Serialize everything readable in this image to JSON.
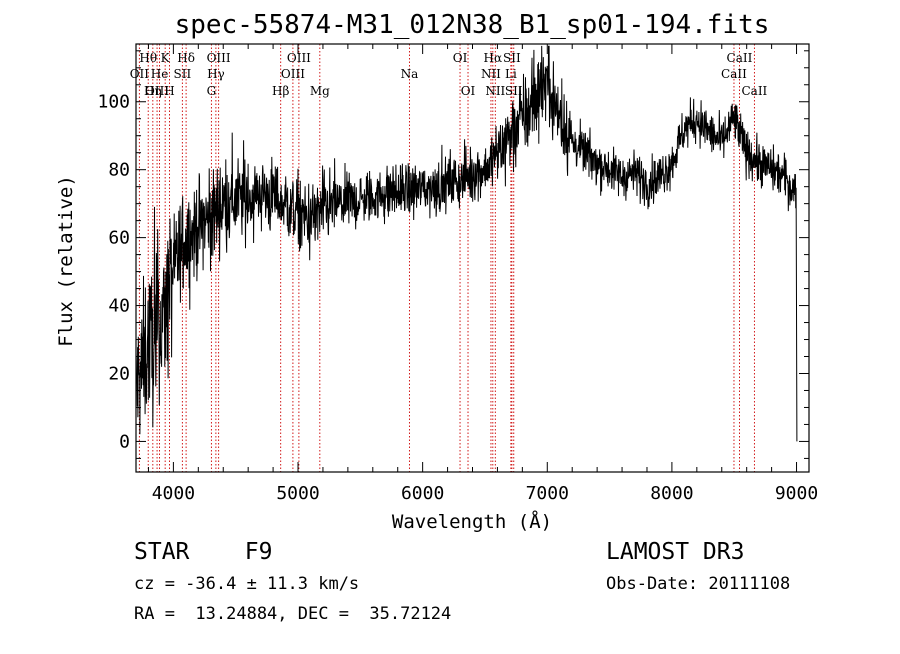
{
  "chart_data": {
    "type": "line",
    "title": "spec-55874-M31_012N38_B1_sp01-194.fits",
    "xlabel": "Wavelength (Å)",
    "ylabel": "Flux (relative)",
    "xlim": [
      3700,
      9100
    ],
    "ylim": [
      -9,
      117
    ],
    "xticks": [
      4000,
      5000,
      6000,
      7000,
      8000,
      9000
    ],
    "yticks": [
      0,
      20,
      40,
      60,
      80,
      100
    ],
    "series": [
      {
        "name": "flux",
        "anchors_x": [
          3700,
          3750,
          3800,
          3850,
          3900,
          3950,
          4000,
          4050,
          4100,
          4200,
          4300,
          4400,
          4500,
          4600,
          4700,
          4800,
          4900,
          5000,
          5100,
          5200,
          5300,
          5500,
          5700,
          5900,
          6100,
          6300,
          6400,
          6500,
          6600,
          6700,
          6800,
          6900,
          6950,
          7000,
          7100,
          7200,
          7300,
          7400,
          7500,
          7600,
          7700,
          7800,
          7900,
          8000,
          8100,
          8200,
          8300,
          8400,
          8500,
          8550,
          8600,
          8700,
          8800,
          8900,
          8950,
          9000
        ],
        "anchors_y": [
          15,
          22,
          30,
          28,
          35,
          40,
          50,
          55,
          60,
          63,
          66,
          70,
          71,
          72,
          73,
          72,
          70,
          67,
          65,
          68,
          70,
          71,
          73,
          74,
          75,
          77,
          79,
          80,
          85,
          90,
          95,
          100,
          105,
          106,
          95,
          88,
          85,
          82,
          80,
          78,
          79,
          76,
          78,
          82,
          92,
          95,
          91,
          88,
          95,
          90,
          85,
          82,
          80,
          78,
          75,
          74
        ]
      }
    ],
    "line_marks": [
      {
        "label": "Hθ",
        "x": 3798,
        "row": 0
      },
      {
        "label": "OII",
        "x": 3727,
        "row": 1
      },
      {
        "label": "OIII",
        "x": 3869,
        "row": 2
      },
      {
        "label": "He",
        "x": 3889,
        "row": 1
      },
      {
        "label": "Hη",
        "x": 3835,
        "row": 2
      },
      {
        "label": "K",
        "x": 3934,
        "row": 0
      },
      {
        "label": "H",
        "x": 3969,
        "row": 2
      },
      {
        "label": "SII",
        "x": 4072,
        "row": 1
      },
      {
        "label": "Hδ",
        "x": 4102,
        "row": 0
      },
      {
        "label": "G",
        "x": 4305,
        "row": 2
      },
      {
        "label": "Hγ",
        "x": 4341,
        "row": 1
      },
      {
        "label": "OIII",
        "x": 4363,
        "row": 0
      },
      {
        "label": "Hβ",
        "x": 4861,
        "row": 2
      },
      {
        "label": "OIII",
        "x": 4959,
        "row": 1
      },
      {
        "label": "OIII",
        "x": 5007,
        "row": 0
      },
      {
        "label": "Mg",
        "x": 5175,
        "row": 2
      },
      {
        "label": "Na",
        "x": 5894,
        "row": 1
      },
      {
        "label": "OI",
        "x": 6300,
        "row": 0
      },
      {
        "label": "OI",
        "x": 6364,
        "row": 2
      },
      {
        "label": "NII",
        "x": 6548,
        "row": 1
      },
      {
        "label": "Hα",
        "x": 6563,
        "row": 0
      },
      {
        "label": "NII",
        "x": 6583,
        "row": 2
      },
      {
        "label": "SII",
        "x": 6716,
        "row": 0
      },
      {
        "label": "Li",
        "x": 6708,
        "row": 1
      },
      {
        "label": "SII",
        "x": 6731,
        "row": 2
      },
      {
        "label": "CaII",
        "x": 8498,
        "row": 1
      },
      {
        "label": "CaII",
        "x": 8542,
        "row": 0
      },
      {
        "label": "CaII",
        "x": 8662,
        "row": 2
      }
    ]
  },
  "footer": {
    "class_label": "STAR    F9",
    "survey": "LAMOST DR3",
    "cz": "cz = -36.4 ± 11.3 km/s",
    "obs_date": "Obs-Date: 20111108",
    "radec": "RA =  13.24884, DEC =  35.72124"
  },
  "colors": {
    "spectrum": "#000000",
    "line_marker": "#cc0000",
    "axis": "#000000",
    "background": "#ffffff"
  }
}
